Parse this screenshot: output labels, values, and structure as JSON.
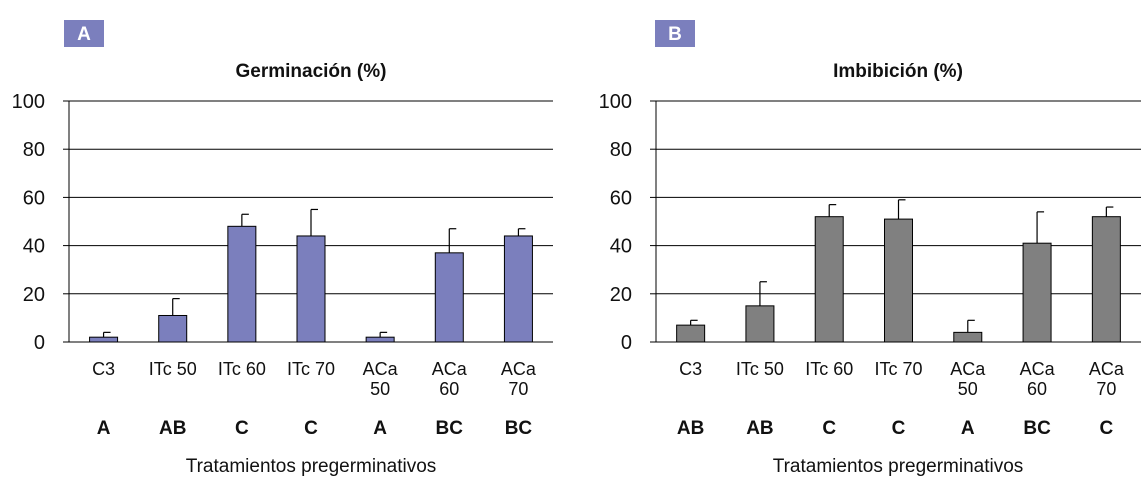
{
  "chart_data": [
    {
      "type": "bar",
      "panel_letter": "A",
      "title": "Germinación (%)",
      "xlabel": "Tratamientos pregerminativos",
      "ylabel": "",
      "ylim": [
        0,
        100
      ],
      "yticks": [
        "0",
        "20",
        "40",
        "60",
        "80",
        "100"
      ],
      "grid": true,
      "categories": [
        [
          "C3"
        ],
        [
          "ITc 50"
        ],
        [
          "ITc 60"
        ],
        [
          "ITc 70"
        ],
        [
          "ACa",
          "50"
        ],
        [
          "ACa",
          "60"
        ],
        [
          "ACa",
          "70"
        ]
      ],
      "values": [
        2,
        11,
        48,
        44,
        2,
        37,
        44
      ],
      "error_upper": [
        2,
        7,
        5,
        11,
        2,
        10,
        3
      ],
      "group_letters": [
        "A",
        "AB",
        "C",
        "C",
        "A",
        "BC",
        "BC"
      ],
      "bar_color": "#7b7fbd",
      "badge_color": "#7b7fbd"
    },
    {
      "type": "bar",
      "panel_letter": "B",
      "title": "Imbibición (%)",
      "xlabel": "Tratamientos pregerminativos",
      "ylabel": "",
      "ylim": [
        0,
        100
      ],
      "yticks": [
        "0",
        "20",
        "40",
        "60",
        "80",
        "100"
      ],
      "grid": true,
      "categories": [
        [
          "C3"
        ],
        [
          "ITc 50"
        ],
        [
          "ITc 60"
        ],
        [
          "ITc 70"
        ],
        [
          "ACa",
          "50"
        ],
        [
          "ACa",
          "60"
        ],
        [
          "ACa",
          "70"
        ]
      ],
      "values": [
        7,
        15,
        52,
        51,
        4,
        41,
        52
      ],
      "error_upper": [
        2,
        10,
        5,
        8,
        5,
        13,
        4
      ],
      "group_letters": [
        "AB",
        "AB",
        "C",
        "C",
        "A",
        "BC",
        "C"
      ],
      "bar_color": "#808080",
      "badge_color": "#7b7fbd"
    }
  ]
}
